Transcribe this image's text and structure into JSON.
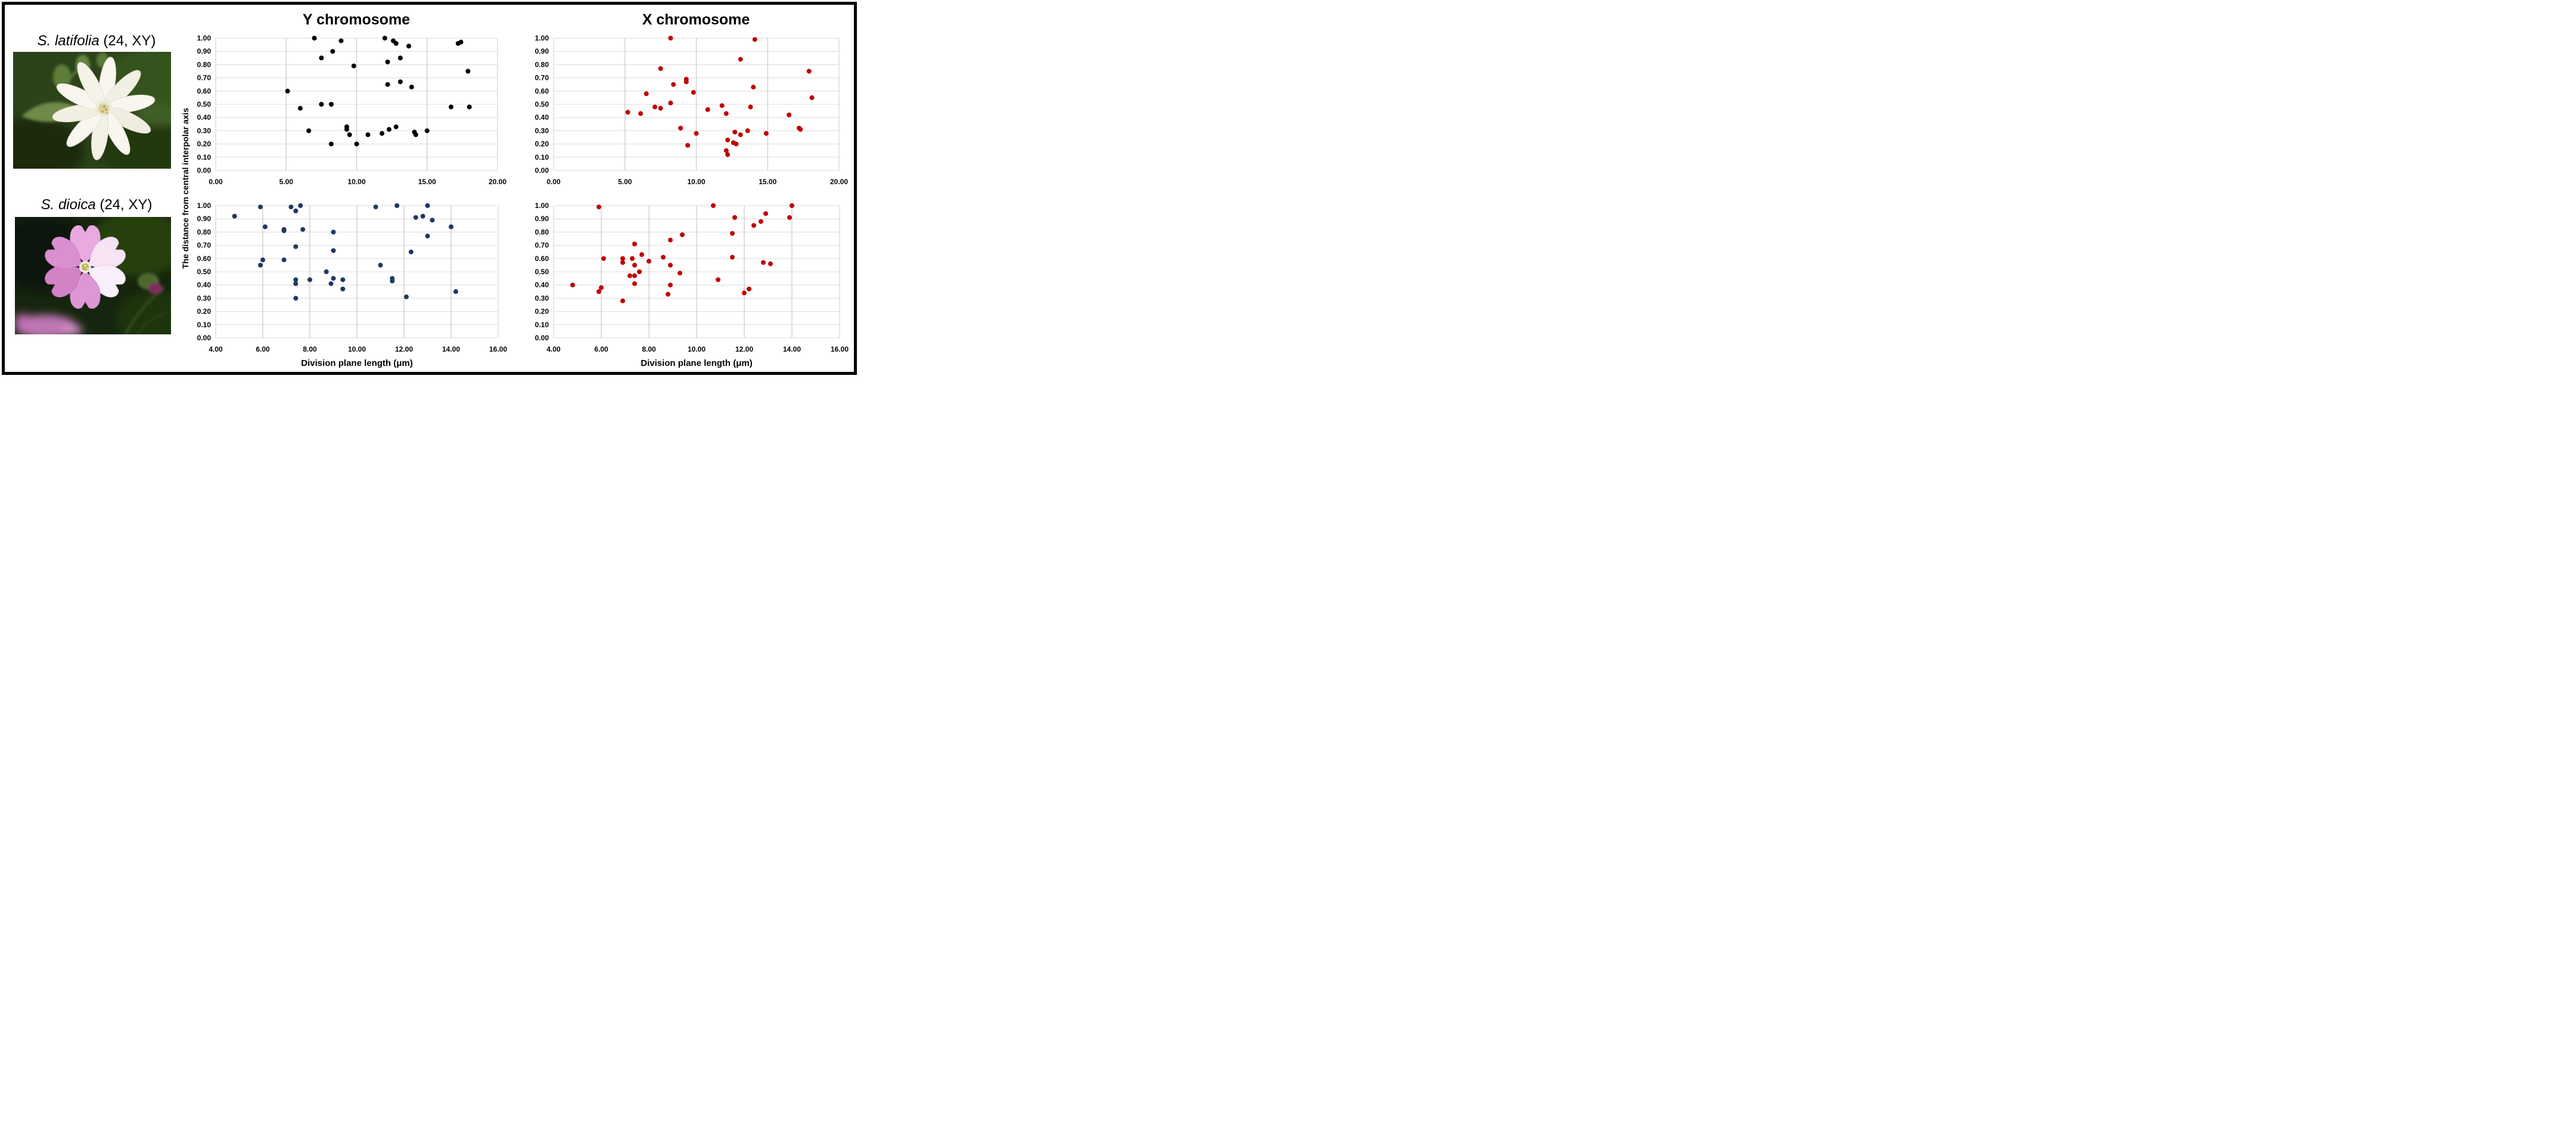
{
  "titles": {
    "col_y": "Y chromosome",
    "col_x": "X chromosome"
  },
  "axes": {
    "y_title": "The distance from central interpolar axis",
    "x_title": "Division plane length (μm)"
  },
  "species": [
    {
      "name": "S. latifolia",
      "suffix": " (24, XY)"
    },
    {
      "name": "S. dioica",
      "suffix": " (24, XY)"
    }
  ],
  "colors": {
    "black": "#000000",
    "red": "#C00000",
    "navy": "#1F3864",
    "grid_h": "#DCDCDC",
    "grid_v": "#C9C9C9",
    "plot_border": "#D9D9D9"
  },
  "chart_data": [
    {
      "id": "top-left",
      "type": "scatter",
      "species": "S. latifolia",
      "chromosome": "Y",
      "color_key": "black",
      "x_min": 0,
      "x_max": 20,
      "x_step": 5,
      "y_min": 0,
      "y_max": 1,
      "y_step": 0.1,
      "x_tick_labels": [
        "0.00",
        "5.00",
        "10.00",
        "15.00",
        "20.00"
      ],
      "y_tick_labels": [
        "0.00",
        "0.10",
        "0.20",
        "0.30",
        "0.40",
        "0.50",
        "0.60",
        "0.70",
        "0.80",
        "0.90",
        "1.00"
      ],
      "points": [
        [
          7.0,
          1.0
        ],
        [
          8.9,
          0.98
        ],
        [
          12.0,
          1.0
        ],
        [
          12.6,
          0.98
        ],
        [
          12.8,
          0.96
        ],
        [
          13.7,
          0.94
        ],
        [
          17.2,
          0.96
        ],
        [
          17.4,
          0.97
        ],
        [
          8.3,
          0.9
        ],
        [
          7.5,
          0.85
        ],
        [
          13.1,
          0.85
        ],
        [
          12.2,
          0.82
        ],
        [
          9.8,
          0.79
        ],
        [
          17.9,
          0.75
        ],
        [
          12.2,
          0.65
        ],
        [
          13.1,
          0.67
        ],
        [
          13.9,
          0.63
        ],
        [
          5.1,
          0.6
        ],
        [
          7.5,
          0.5
        ],
        [
          8.2,
          0.5
        ],
        [
          6.0,
          0.47
        ],
        [
          16.7,
          0.48
        ],
        [
          18.0,
          0.48
        ],
        [
          12.8,
          0.33
        ],
        [
          9.3,
          0.33
        ],
        [
          9.3,
          0.31
        ],
        [
          12.3,
          0.31
        ],
        [
          6.6,
          0.3
        ],
        [
          15.0,
          0.3
        ],
        [
          14.1,
          0.29
        ],
        [
          14.2,
          0.27
        ],
        [
          9.5,
          0.27
        ],
        [
          10.8,
          0.27
        ],
        [
          11.8,
          0.28
        ],
        [
          8.2,
          0.2
        ],
        [
          10.0,
          0.2
        ]
      ]
    },
    {
      "id": "top-right",
      "type": "scatter",
      "species": "S. latifolia",
      "chromosome": "X",
      "color_key": "red",
      "x_min": 0,
      "x_max": 20,
      "x_step": 5,
      "y_min": 0,
      "y_max": 1,
      "y_step": 0.1,
      "x_tick_labels": [
        "0.00",
        "5.00",
        "10.00",
        "15.00",
        "20.00"
      ],
      "y_tick_labels": [
        "0.00",
        "0.10",
        "0.20",
        "0.30",
        "0.40",
        "0.50",
        "0.60",
        "0.70",
        "0.80",
        "0.90",
        "1.00"
      ],
      "points": [
        [
          8.2,
          1.0
        ],
        [
          14.1,
          0.99
        ],
        [
          13.1,
          0.84
        ],
        [
          7.5,
          0.77
        ],
        [
          17.9,
          0.75
        ],
        [
          9.3,
          0.69
        ],
        [
          9.3,
          0.67
        ],
        [
          8.4,
          0.65
        ],
        [
          14.0,
          0.63
        ],
        [
          9.8,
          0.59
        ],
        [
          6.5,
          0.58
        ],
        [
          18.1,
          0.55
        ],
        [
          8.2,
          0.51
        ],
        [
          11.8,
          0.49
        ],
        [
          7.1,
          0.48
        ],
        [
          7.5,
          0.47
        ],
        [
          13.8,
          0.48
        ],
        [
          10.8,
          0.46
        ],
        [
          5.2,
          0.44
        ],
        [
          6.1,
          0.43
        ],
        [
          12.1,
          0.43
        ],
        [
          16.5,
          0.42
        ],
        [
          8.9,
          0.32
        ],
        [
          17.2,
          0.32
        ],
        [
          17.3,
          0.31
        ],
        [
          13.6,
          0.3
        ],
        [
          12.7,
          0.29
        ],
        [
          10.0,
          0.28
        ],
        [
          14.9,
          0.28
        ],
        [
          13.1,
          0.27
        ],
        [
          12.2,
          0.23
        ],
        [
          12.6,
          0.21
        ],
        [
          12.8,
          0.2
        ],
        [
          9.4,
          0.19
        ],
        [
          12.1,
          0.15
        ],
        [
          12.2,
          0.12
        ]
      ]
    },
    {
      "id": "bottom-left",
      "type": "scatter",
      "species": "S. dioica",
      "chromosome": "Y",
      "color_key": "navy",
      "x_min": 4,
      "x_max": 16,
      "x_step": 2,
      "y_min": 0,
      "y_max": 1,
      "y_step": 0.1,
      "x_tick_labels": [
        "4.00",
        "6.00",
        "8.00",
        "10.00",
        "12.00",
        "14.00",
        "16.00"
      ],
      "y_tick_labels": [
        "0.00",
        "0.10",
        "0.20",
        "0.30",
        "0.40",
        "0.50",
        "0.60",
        "0.70",
        "0.80",
        "0.90",
        "1.00"
      ],
      "points": [
        [
          4.8,
          0.92
        ],
        [
          5.9,
          0.99
        ],
        [
          7.2,
          0.99
        ],
        [
          7.6,
          1.0
        ],
        [
          7.4,
          0.96
        ],
        [
          10.8,
          0.99
        ],
        [
          11.7,
          1.0
        ],
        [
          13.0,
          1.0
        ],
        [
          12.5,
          0.91
        ],
        [
          12.8,
          0.92
        ],
        [
          13.2,
          0.89
        ],
        [
          14.0,
          0.84
        ],
        [
          6.1,
          0.84
        ],
        [
          6.9,
          0.82
        ],
        [
          6.9,
          0.81
        ],
        [
          7.7,
          0.82
        ],
        [
          9.0,
          0.8
        ],
        [
          13.0,
          0.77
        ],
        [
          7.4,
          0.69
        ],
        [
          9.0,
          0.66
        ],
        [
          12.3,
          0.65
        ],
        [
          6.0,
          0.59
        ],
        [
          5.9,
          0.55
        ],
        [
          6.9,
          0.59
        ],
        [
          11.0,
          0.55
        ],
        [
          8.7,
          0.5
        ],
        [
          7.4,
          0.44
        ],
        [
          7.4,
          0.41
        ],
        [
          8.0,
          0.44
        ],
        [
          9.0,
          0.45
        ],
        [
          9.4,
          0.44
        ],
        [
          8.9,
          0.41
        ],
        [
          11.5,
          0.45
        ],
        [
          11.5,
          0.43
        ],
        [
          9.4,
          0.37
        ],
        [
          12.1,
          0.31
        ],
        [
          7.4,
          0.3
        ],
        [
          14.2,
          0.35
        ]
      ]
    },
    {
      "id": "bottom-right",
      "type": "scatter",
      "species": "S. dioica",
      "chromosome": "X",
      "color_key": "red",
      "x_min": 4,
      "x_max": 16,
      "x_step": 2,
      "y_min": 0,
      "y_max": 1,
      "y_step": 0.1,
      "x_tick_labels": [
        "4.00",
        "6.00",
        "8.00",
        "10.00",
        "12.00",
        "14.00",
        "16.00"
      ],
      "y_tick_labels": [
        "0.00",
        "0.10",
        "0.20",
        "0.30",
        "0.40",
        "0.50",
        "0.60",
        "0.70",
        "0.80",
        "0.90",
        "1.00"
      ],
      "points": [
        [
          5.9,
          0.99
        ],
        [
          10.7,
          1.0
        ],
        [
          14.0,
          1.0
        ],
        [
          12.9,
          0.94
        ],
        [
          11.6,
          0.91
        ],
        [
          13.9,
          0.91
        ],
        [
          12.7,
          0.88
        ],
        [
          12.4,
          0.85
        ],
        [
          11.5,
          0.79
        ],
        [
          9.4,
          0.78
        ],
        [
          8.9,
          0.74
        ],
        [
          7.4,
          0.71
        ],
        [
          7.7,
          0.63
        ],
        [
          8.6,
          0.61
        ],
        [
          11.5,
          0.61
        ],
        [
          6.1,
          0.6
        ],
        [
          7.3,
          0.6
        ],
        [
          6.9,
          0.6
        ],
        [
          6.9,
          0.57
        ],
        [
          8.0,
          0.58
        ],
        [
          12.8,
          0.57
        ],
        [
          13.1,
          0.56
        ],
        [
          8.9,
          0.55
        ],
        [
          7.4,
          0.55
        ],
        [
          7.6,
          0.5
        ],
        [
          9.3,
          0.49
        ],
        [
          7.2,
          0.47
        ],
        [
          7.4,
          0.47
        ],
        [
          10.9,
          0.44
        ],
        [
          7.4,
          0.41
        ],
        [
          4.8,
          0.4
        ],
        [
          8.9,
          0.4
        ],
        [
          6.0,
          0.38
        ],
        [
          5.9,
          0.35
        ],
        [
          12.0,
          0.34
        ],
        [
          12.2,
          0.37
        ],
        [
          8.8,
          0.33
        ],
        [
          6.9,
          0.28
        ]
      ]
    }
  ]
}
